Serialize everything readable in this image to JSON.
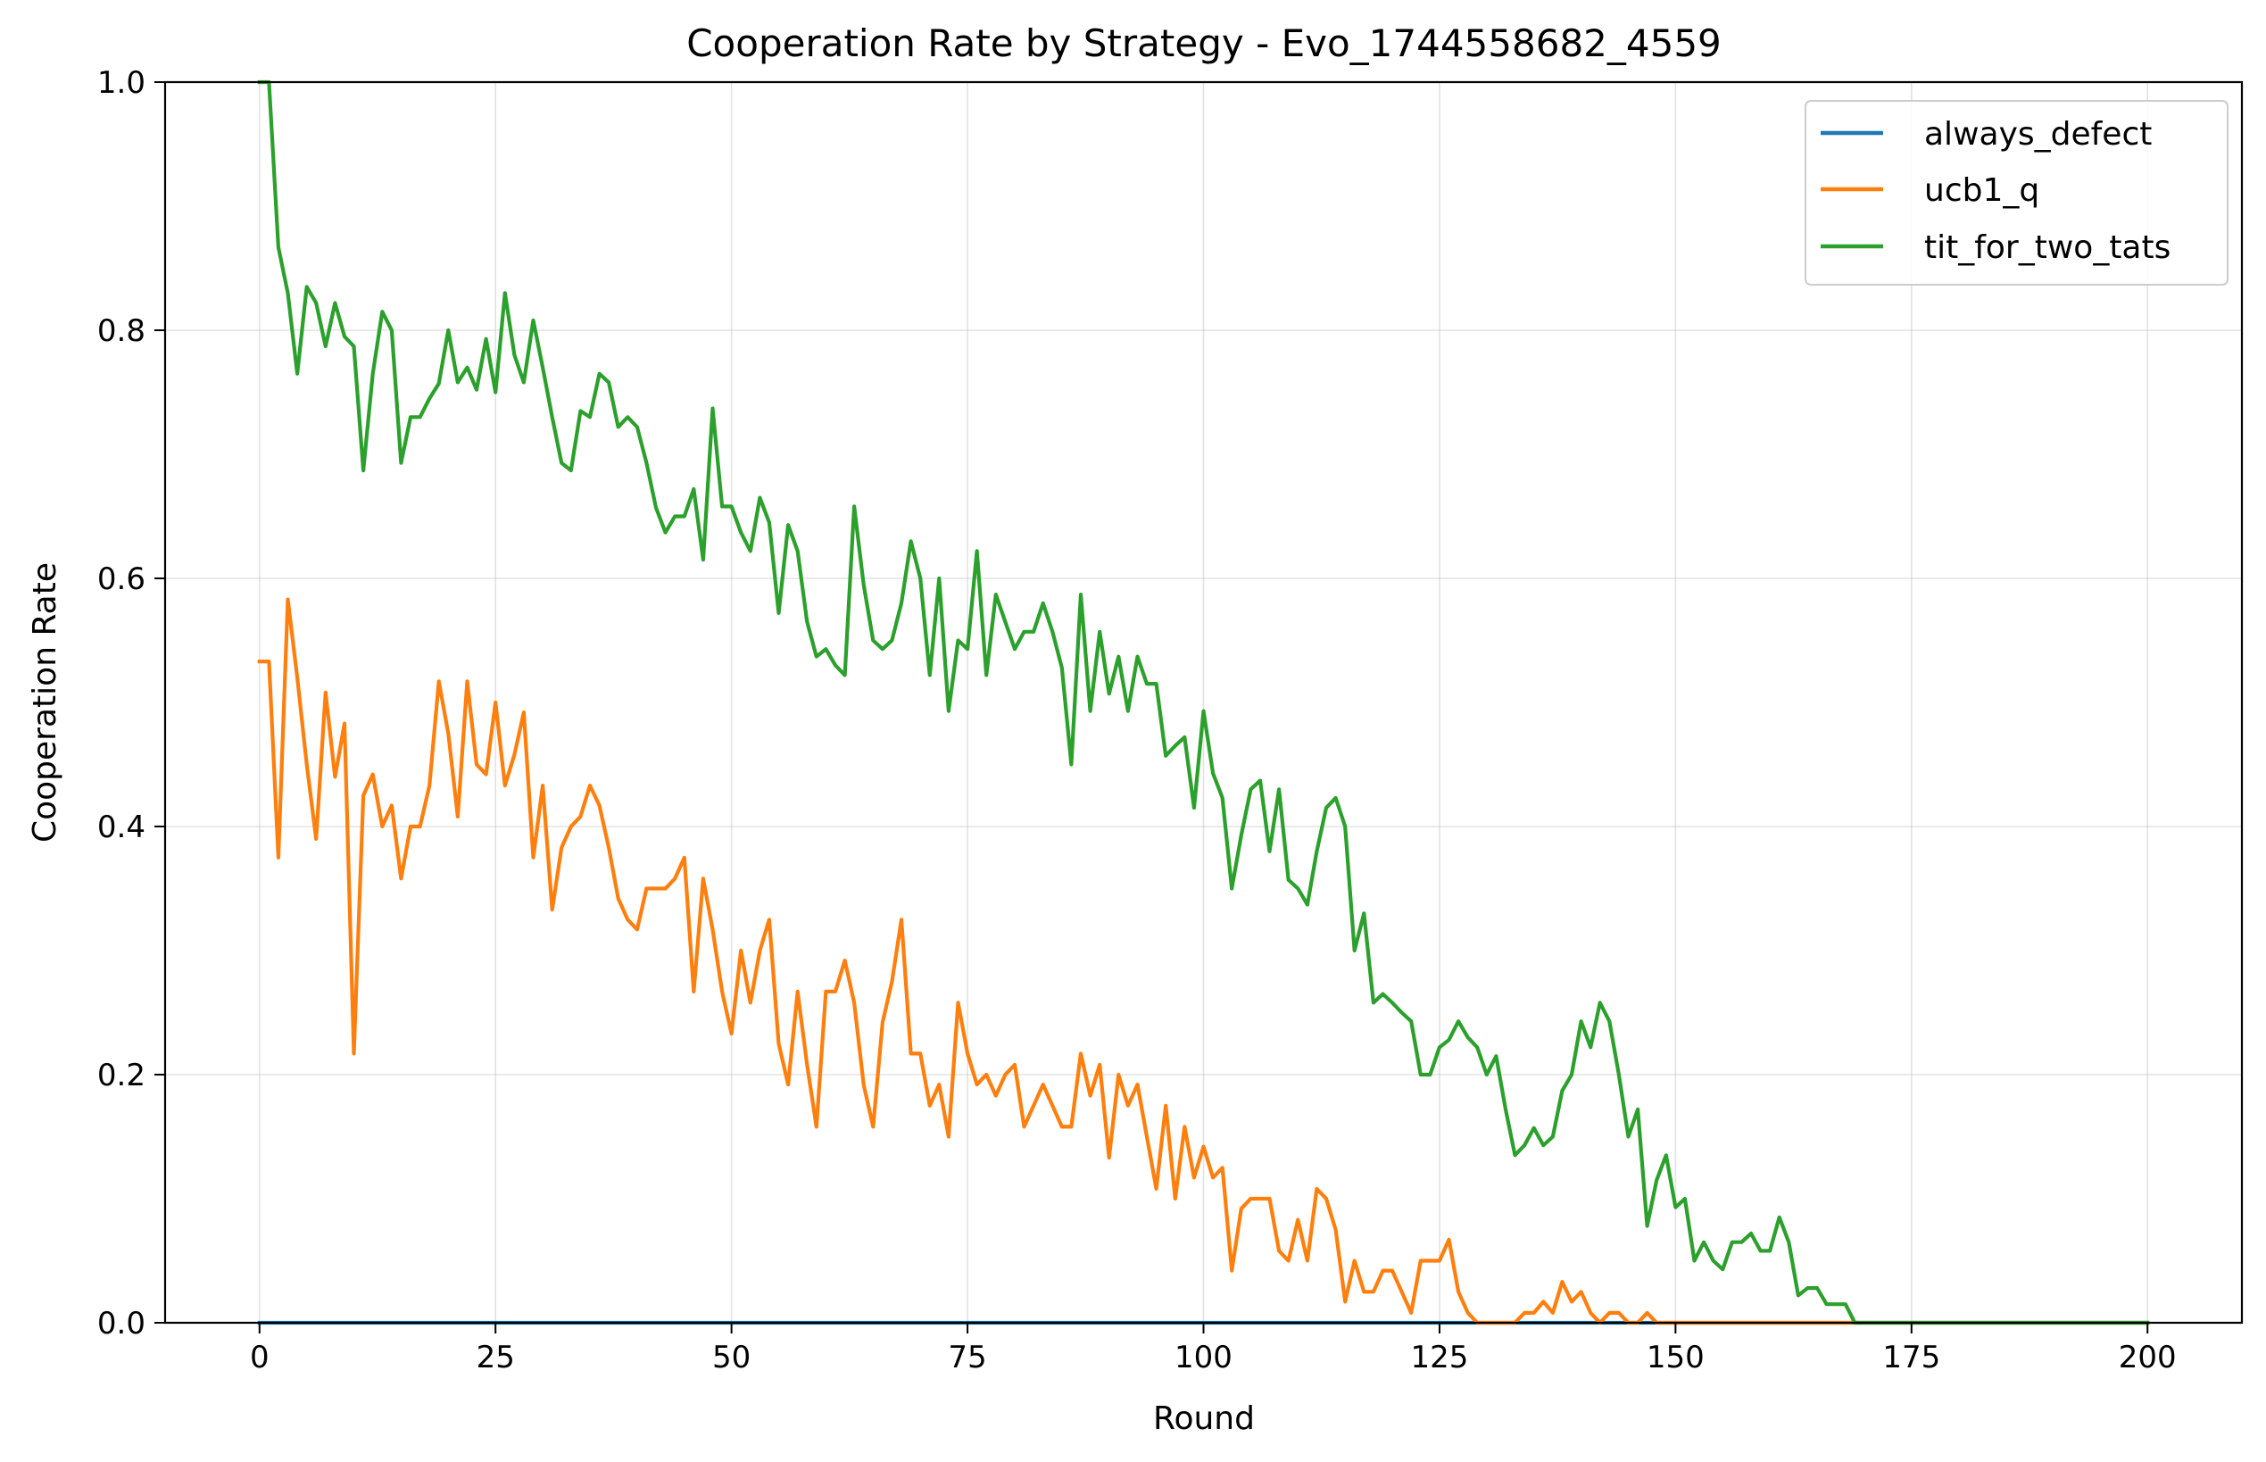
{
  "chart_data": {
    "type": "line",
    "title": "Cooperation Rate by Strategy - Evo_1744558682_4559",
    "xlabel": "Round",
    "ylabel": "Cooperation Rate",
    "xlim": [
      -10,
      210
    ],
    "ylim": [
      0,
      1
    ],
    "xticks": [
      0,
      25,
      50,
      75,
      100,
      125,
      150,
      175,
      200
    ],
    "yticks": [
      0.0,
      0.2,
      0.4,
      0.6,
      0.8,
      1.0
    ],
    "xtick_labels": [
      "0",
      "25",
      "50",
      "75",
      "100",
      "125",
      "150",
      "175",
      "200"
    ],
    "ytick_labels": [
      "0.0",
      "0.2",
      "0.4",
      "0.6",
      "0.8",
      "1.0"
    ],
    "grid": true,
    "legend_position": "top-right",
    "series": [
      {
        "name": "always_defect",
        "color": "#1f77b4",
        "x": [
          0,
          200
        ],
        "y": [
          0.0,
          0.0
        ]
      },
      {
        "name": "ucb1_q",
        "color": "#ff7f0e",
        "x": [
          0,
          1,
          2,
          3,
          4,
          5,
          6,
          7,
          8,
          9,
          10,
          11,
          12,
          13,
          14,
          15,
          16,
          17,
          18,
          19,
          20,
          21,
          22,
          23,
          24,
          25,
          26,
          27,
          28,
          29,
          30,
          31,
          32,
          33,
          34,
          35,
          36,
          37,
          38,
          39,
          40,
          41,
          42,
          43,
          44,
          45,
          46,
          47,
          48,
          49,
          50,
          51,
          52,
          53,
          54,
          55,
          56,
          57,
          58,
          59,
          60,
          61,
          62,
          63,
          64,
          65,
          66,
          67,
          68,
          69,
          70,
          71,
          72,
          73,
          74,
          75,
          76,
          77,
          78,
          79,
          80,
          81,
          82,
          83,
          84,
          85,
          86,
          87,
          88,
          89,
          90,
          91,
          92,
          93,
          94,
          95,
          96,
          97,
          98,
          99,
          100,
          101,
          102,
          103,
          104,
          105,
          106,
          107,
          108,
          109,
          110,
          111,
          112,
          113,
          114,
          115,
          116,
          117,
          118,
          119,
          120,
          121,
          122,
          123,
          124,
          125,
          126,
          127,
          128,
          129,
          130,
          131,
          132,
          133,
          134,
          135,
          136,
          137,
          138,
          139,
          140,
          141,
          142,
          143,
          144,
          145,
          146,
          147,
          148,
          200
        ],
        "y": [
          0.533,
          0.533,
          0.375,
          0.583,
          0.52,
          0.45,
          0.39,
          0.508,
          0.44,
          0.483,
          0.217,
          0.425,
          0.442,
          0.4,
          0.417,
          0.358,
          0.4,
          0.4,
          0.433,
          0.517,
          0.475,
          0.408,
          0.517,
          0.45,
          0.442,
          0.5,
          0.433,
          0.458,
          0.492,
          0.375,
          0.433,
          0.333,
          0.383,
          0.4,
          0.408,
          0.433,
          0.417,
          0.383,
          0.342,
          0.325,
          0.317,
          0.35,
          0.35,
          0.35,
          0.358,
          0.375,
          0.267,
          0.358,
          0.317,
          0.267,
          0.233,
          0.3,
          0.258,
          0.3,
          0.325,
          0.225,
          0.192,
          0.267,
          0.208,
          0.158,
          0.267,
          0.267,
          0.292,
          0.258,
          0.192,
          0.158,
          0.242,
          0.275,
          0.325,
          0.217,
          0.217,
          0.175,
          0.192,
          0.15,
          0.258,
          0.217,
          0.192,
          0.2,
          0.183,
          0.2,
          0.208,
          0.158,
          0.175,
          0.192,
          0.175,
          0.158,
          0.158,
          0.217,
          0.183,
          0.208,
          0.133,
          0.2,
          0.175,
          0.192,
          0.15,
          0.108,
          0.175,
          0.1,
          0.158,
          0.117,
          0.142,
          0.117,
          0.125,
          0.042,
          0.092,
          0.1,
          0.1,
          0.1,
          0.058,
          0.05,
          0.083,
          0.05,
          0.108,
          0.1,
          0.075,
          0.017,
          0.05,
          0.025,
          0.025,
          0.042,
          0.042,
          0.025,
          0.008,
          0.05,
          0.05,
          0.05,
          0.067,
          0.025,
          0.008,
          0.0,
          0.0,
          0.0,
          0.0,
          0.0,
          0.008,
          0.008,
          0.017,
          0.008,
          0.033,
          0.017,
          0.025,
          0.008,
          0.0,
          0.008,
          0.008,
          0.0,
          0.0,
          0.008,
          0.0,
          0.0
        ]
      },
      {
        "name": "tit_for_two_tats",
        "color": "#2ca02c",
        "x": [
          0,
          1,
          2,
          3,
          4,
          5,
          6,
          7,
          8,
          9,
          10,
          11,
          12,
          13,
          14,
          15,
          16,
          17,
          18,
          19,
          20,
          21,
          22,
          23,
          24,
          25,
          26,
          27,
          28,
          29,
          30,
          31,
          32,
          33,
          34,
          35,
          36,
          37,
          38,
          39,
          40,
          41,
          42,
          43,
          44,
          45,
          46,
          47,
          48,
          49,
          50,
          51,
          52,
          53,
          54,
          55,
          56,
          57,
          58,
          59,
          60,
          61,
          62,
          63,
          64,
          65,
          66,
          67,
          68,
          69,
          70,
          71,
          72,
          73,
          74,
          75,
          76,
          77,
          78,
          79,
          80,
          81,
          82,
          83,
          84,
          85,
          86,
          87,
          88,
          89,
          90,
          91,
          92,
          93,
          94,
          95,
          96,
          97,
          98,
          99,
          100,
          101,
          102,
          103,
          104,
          105,
          106,
          107,
          108,
          109,
          110,
          111,
          112,
          113,
          114,
          115,
          116,
          117,
          118,
          119,
          120,
          121,
          122,
          123,
          124,
          125,
          126,
          127,
          128,
          129,
          130,
          131,
          132,
          133,
          134,
          135,
          136,
          137,
          138,
          139,
          140,
          141,
          142,
          143,
          144,
          145,
          146,
          147,
          148,
          149,
          150,
          151,
          152,
          153,
          154,
          155,
          156,
          157,
          158,
          159,
          160,
          161,
          162,
          163,
          164,
          165,
          166,
          167,
          168,
          169,
          200
        ],
        "y": [
          1.0,
          1.0,
          0.867,
          0.83,
          0.765,
          0.835,
          0.822,
          0.787,
          0.822,
          0.795,
          0.787,
          0.687,
          0.765,
          0.815,
          0.8,
          0.693,
          0.73,
          0.73,
          0.745,
          0.757,
          0.8,
          0.758,
          0.77,
          0.752,
          0.793,
          0.75,
          0.83,
          0.78,
          0.758,
          0.808,
          0.77,
          0.73,
          0.693,
          0.687,
          0.735,
          0.73,
          0.765,
          0.758,
          0.722,
          0.73,
          0.722,
          0.693,
          0.657,
          0.637,
          0.65,
          0.65,
          0.672,
          0.615,
          0.737,
          0.658,
          0.658,
          0.637,
          0.622,
          0.665,
          0.645,
          0.572,
          0.643,
          0.622,
          0.565,
          0.537,
          0.543,
          0.53,
          0.522,
          0.658,
          0.595,
          0.55,
          0.543,
          0.55,
          0.58,
          0.63,
          0.6,
          0.522,
          0.6,
          0.493,
          0.55,
          0.543,
          0.622,
          0.522,
          0.587,
          0.565,
          0.543,
          0.557,
          0.557,
          0.58,
          0.557,
          0.528,
          0.45,
          0.587,
          0.493,
          0.557,
          0.507,
          0.537,
          0.493,
          0.537,
          0.515,
          0.515,
          0.457,
          0.465,
          0.472,
          0.415,
          0.493,
          0.443,
          0.423,
          0.35,
          0.393,
          0.43,
          0.437,
          0.38,
          0.43,
          0.357,
          0.35,
          0.337,
          0.38,
          0.415,
          0.423,
          0.4,
          0.3,
          0.33,
          0.258,
          0.265,
          0.258,
          0.25,
          0.243,
          0.2,
          0.2,
          0.222,
          0.228,
          0.243,
          0.23,
          0.222,
          0.2,
          0.215,
          0.172,
          0.135,
          0.143,
          0.157,
          0.143,
          0.15,
          0.187,
          0.2,
          0.243,
          0.222,
          0.258,
          0.243,
          0.2,
          0.15,
          0.172,
          0.078,
          0.115,
          0.135,
          0.093,
          0.1,
          0.05,
          0.065,
          0.05,
          0.043,
          0.065,
          0.065,
          0.072,
          0.058,
          0.058,
          0.085,
          0.065,
          0.022,
          0.028,
          0.028,
          0.015,
          0.015,
          0.015,
          0.0,
          0.0
        ]
      }
    ]
  }
}
